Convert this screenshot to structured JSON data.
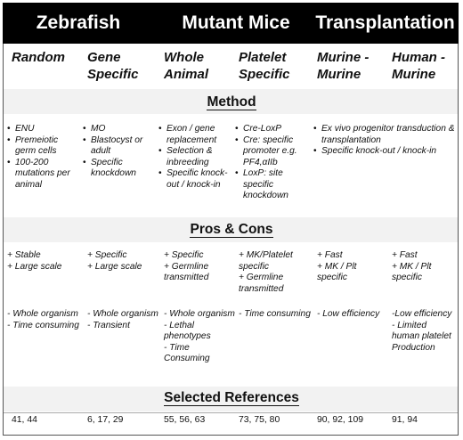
{
  "groups": [
    {
      "title": "Zebrafish"
    },
    {
      "title": "Mutant Mice"
    },
    {
      "title": "Transplantation"
    }
  ],
  "columns": [
    {
      "header": "Random"
    },
    {
      "header": "Gene Specific"
    },
    {
      "header": "Whole Animal"
    },
    {
      "header": "Platelet Specific"
    },
    {
      "header": "Murine - Murine"
    },
    {
      "header": "Human - Murine"
    }
  ],
  "sections": {
    "method": "Method",
    "pros_cons": "Pros & Cons",
    "references": "Selected References"
  },
  "method": {
    "random": [
      "ENU",
      "Premeiotic germ cells",
      "100-200 mutations per animal"
    ],
    "gene_specific": [
      "MO",
      "Blastocyst or adult",
      "Specific knockdown"
    ],
    "whole_animal": [
      "Exon / gene replacement",
      "Selection & inbreeding",
      "Specific knock-out / knock-in"
    ],
    "platelet_specific": [
      "Cre-LoxP",
      "Cre: specific promoter e.g. PF4,αIIb",
      "LoxP: site specific knockdown"
    ],
    "transplantation": [
      "Ex vivo progenitor transduction & transplantation",
      "Specific knock-out / knock-in"
    ]
  },
  "pros": {
    "random": [
      "+ Stable",
      "+ Large scale"
    ],
    "gene_specific": [
      "+ Specific",
      "+ Large scale"
    ],
    "whole_animal": [
      "+ Specific",
      "+ Germline transmitted"
    ],
    "platelet_specific": [
      "+ MK/Platelet specific",
      "+ Germline transmitted"
    ],
    "murine_murine": [
      "+ Fast",
      "+ MK / Plt specific"
    ],
    "human_murine": [
      "+ Fast",
      "+ MK / Plt specific"
    ]
  },
  "cons": {
    "random": [
      "- Whole organism",
      "- Time consuming"
    ],
    "gene_specific": [
      "- Whole organism",
      "- Transient"
    ],
    "whole_animal": [
      "- Whole organism",
      "- Lethal phenotypes",
      "- Time Consuming"
    ],
    "platelet_specific": [
      "- Time consuming"
    ],
    "murine_murine": [
      "- Low efficiency"
    ],
    "human_murine": [
      "-Low efficiency",
      "- Limited human platelet Production"
    ]
  },
  "references": [
    "41, 44",
    "6, 17, 29",
    "55, 56, 63",
    "73, 75, 80",
    "90, 92, 109",
    "91, 94"
  ]
}
